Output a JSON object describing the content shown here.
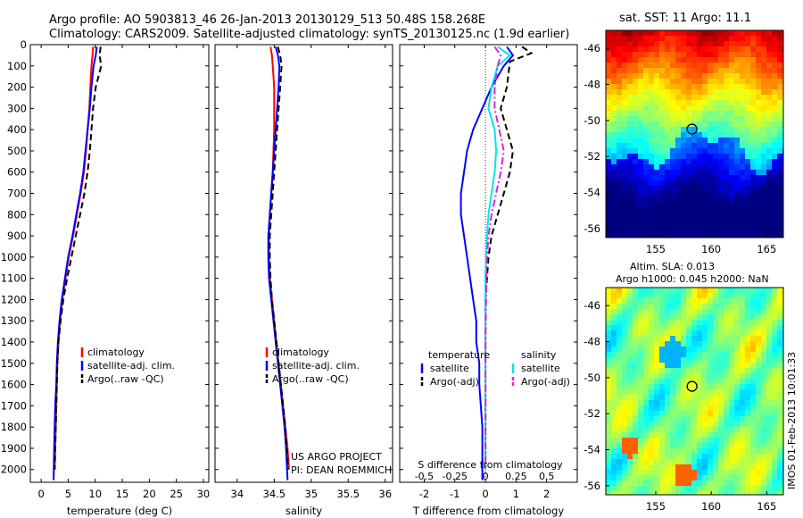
{
  "figure": {
    "title_line1": "Argo profile: AO 5903813_46 26-Jan-2013 20130129_513 50.48S 158.268E",
    "title_line2": "Climatology: CARS2009. Satellite-adjusted climatology: synTS_20130125.nc (1.9d earlier)",
    "footer_line1": "US ARGO PROJECT",
    "footer_line2": "PI: DEAN ROEMMICH",
    "timestamp": "IMOS 01-Feb-2013 10:01:33",
    "map1_title": "sat. SST: 11 Argo: 11.1",
    "map2_title_line1": "Altim. SLA: 0.013",
    "map2_title_line2": "Argo h1000: 0.045 h2000: NaN"
  },
  "colors": {
    "climatology": "#ff0000",
    "satellite": "#0000ff",
    "argo": "#000000",
    "salinity_satellite": "#00e5ee",
    "salinity_argo": "#e020e0"
  },
  "chart_data": [
    {
      "type": "line",
      "xlabel": "temperature (deg C)",
      "ylabel": "",
      "xlim": [
        -2,
        31
      ],
      "ylim": [
        2060,
        0
      ],
      "xticks": [
        "0",
        "5",
        "10",
        "15",
        "20",
        "25",
        "30"
      ],
      "xtick_values": [
        0,
        5,
        10,
        15,
        20,
        25,
        30
      ],
      "yticks": [
        "0",
        "100",
        "200",
        "300",
        "400",
        "500",
        "600",
        "700",
        "800",
        "900",
        "1000",
        "1100",
        "1200",
        "1300",
        "1400",
        "1500",
        "1600",
        "1700",
        "1800",
        "1900",
        "2000"
      ],
      "ytick_values": [
        0,
        100,
        200,
        300,
        400,
        500,
        600,
        700,
        800,
        900,
        1000,
        1100,
        1200,
        1300,
        1400,
        1500,
        1600,
        1700,
        1800,
        1900,
        2000
      ],
      "legend": [
        "climatology",
        "satellite-adj. clim.",
        "Argo(..raw -QC)"
      ],
      "legend_position": "lower-right",
      "series": [
        {
          "name": "climatology",
          "color": "#ff0000",
          "dash": "solid",
          "x": [
            9.6,
            9.5,
            9.3,
            9.1,
            8.9,
            8.6,
            8.3,
            7.9,
            7.3,
            6.6,
            5.9,
            5.1,
            4.5,
            3.9,
            3.5,
            3.2,
            3.0,
            2.9,
            2.8,
            2.7,
            2.6,
            2.5
          ],
          "y": [
            10,
            50,
            100,
            200,
            300,
            400,
            500,
            600,
            700,
            800,
            900,
            1000,
            1100,
            1200,
            1300,
            1400,
            1500,
            1600,
            1700,
            1800,
            1900,
            2000
          ]
        },
        {
          "name": "satellite-adj. clim.",
          "color": "#0000ff",
          "dash": "solid",
          "x": [
            10.3,
            10.1,
            9.7,
            9.3,
            9.0,
            8.6,
            8.2,
            7.8,
            7.2,
            6.5,
            5.8,
            5.0,
            4.4,
            3.8,
            3.4,
            3.1,
            2.9,
            2.8,
            2.6,
            2.5,
            2.4,
            2.3
          ],
          "y": [
            10,
            50,
            100,
            200,
            300,
            400,
            500,
            600,
            700,
            800,
            900,
            1000,
            1100,
            1200,
            1300,
            1400,
            1500,
            1600,
            1700,
            1800,
            1900,
            2050
          ]
        },
        {
          "name": "Argo(..raw -QC)",
          "color": "#000000",
          "dash": "dash",
          "x": [
            11.0,
            10.8,
            11.1,
            10.1,
            9.6,
            9.3,
            9.0,
            8.6,
            8.0,
            7.2,
            6.4,
            5.6,
            4.8,
            4.1,
            3.6,
            3.2,
            3.0,
            2.9,
            2.8,
            2.7,
            2.6,
            2.5
          ],
          "y": [
            10,
            50,
            100,
            200,
            300,
            400,
            500,
            600,
            700,
            800,
            900,
            1000,
            1100,
            1200,
            1300,
            1400,
            1500,
            1600,
            1700,
            1800,
            1900,
            2000
          ]
        }
      ]
    },
    {
      "type": "line",
      "xlabel": "salinity",
      "xlim": [
        33.7,
        36.1
      ],
      "ylim": [
        2060,
        0
      ],
      "xticks": [
        "34",
        "34.5",
        "35",
        "35.5",
        "36"
      ],
      "xtick_values": [
        34,
        34.5,
        35,
        35.5,
        36
      ],
      "legend": [
        "climatology",
        "satellite-adj. clim.",
        "Argo(..raw -QC)"
      ],
      "legend_position": "lower-right",
      "series": [
        {
          "name": "climatology",
          "color": "#ff0000",
          "dash": "solid",
          "x": [
            34.45,
            34.47,
            34.48,
            34.5,
            34.5,
            34.5,
            34.49,
            34.48,
            34.46,
            34.44,
            34.43,
            34.43,
            34.44,
            34.47,
            34.5,
            34.53,
            34.56,
            34.59,
            34.62,
            34.65,
            34.68,
            34.7
          ],
          "y": [
            10,
            50,
            100,
            200,
            300,
            400,
            500,
            600,
            700,
            800,
            900,
            1000,
            1100,
            1200,
            1300,
            1400,
            1500,
            1600,
            1700,
            1800,
            1900,
            2000
          ]
        },
        {
          "name": "satellite-adj. clim.",
          "color": "#0000ff",
          "dash": "solid",
          "x": [
            34.52,
            34.55,
            34.57,
            34.56,
            34.54,
            34.52,
            34.5,
            34.48,
            34.46,
            34.44,
            34.42,
            34.42,
            34.43,
            34.46,
            34.49,
            34.52,
            34.55,
            34.58,
            34.61,
            34.64,
            34.66,
            34.68
          ],
          "y": [
            10,
            50,
            100,
            200,
            300,
            400,
            500,
            600,
            700,
            800,
            900,
            1000,
            1100,
            1200,
            1300,
            1400,
            1500,
            1600,
            1700,
            1800,
            1900,
            2050
          ]
        },
        {
          "name": "Argo(..raw -QC)",
          "color": "#000000",
          "dash": "dash",
          "x": [
            34.55,
            34.58,
            34.6,
            34.58,
            34.56,
            34.54,
            34.52,
            34.5,
            34.48,
            34.46,
            34.44,
            34.44,
            34.45,
            34.47,
            34.5,
            34.53,
            34.56,
            34.59,
            34.62,
            34.65,
            34.67,
            34.69
          ],
          "y": [
            10,
            50,
            100,
            200,
            300,
            400,
            500,
            600,
            700,
            800,
            900,
            1000,
            1100,
            1200,
            1300,
            1400,
            1500,
            1600,
            1700,
            1800,
            1900,
            2000
          ]
        }
      ]
    },
    {
      "type": "line",
      "xlabel": "T difference from climatology",
      "xlabel_top": "S difference from climatology",
      "xlim": [
        -2.8,
        3.0
      ],
      "ylim": [
        2060,
        0
      ],
      "xticks": [
        "-2",
        "-1",
        "0",
        "1",
        "2"
      ],
      "xtick_values": [
        -2,
        -1,
        0,
        1,
        2
      ],
      "sticks": [
        "-0.5",
        "-0.25",
        "0",
        "0.25",
        "0.5"
      ],
      "stick_values": [
        -2,
        -1,
        0,
        1,
        2
      ],
      "legend_headers": [
        "temperature",
        "salinity"
      ],
      "legend": [
        "satellite",
        "Argo(-adj)",
        "satellite",
        "Argo(-adj)"
      ],
      "legend_position": "lower-center",
      "series": [
        {
          "name": "satellite",
          "group": "temperature",
          "color": "#0000ff",
          "dash": "solid",
          "x": [
            0.7,
            0.9,
            0.6,
            0.2,
            -0.1,
            -0.4,
            -0.6,
            -0.7,
            -0.8,
            -0.8,
            -0.7,
            -0.6,
            -0.5,
            -0.4,
            -0.3,
            -0.3,
            -0.2,
            -0.2,
            -0.15,
            -0.1,
            -0.1,
            -0.1
          ],
          "y": [
            10,
            50,
            100,
            200,
            300,
            400,
            500,
            600,
            700,
            800,
            900,
            1000,
            1100,
            1200,
            1300,
            1400,
            1500,
            1600,
            1700,
            1800,
            1900,
            2050
          ]
        },
        {
          "name": "Argo(-adj)",
          "group": "temperature",
          "color": "#000000",
          "dash": "dash",
          "x": [
            1.2,
            1.5,
            0.8,
            0.7,
            0.5,
            0.7,
            0.9,
            0.8,
            0.6,
            0.4,
            0.2,
            0.1,
            0.05,
            0.0,
            0.0,
            0.0,
            0.0,
            0.0,
            0.0,
            0.0,
            0.0,
            0.0
          ],
          "y": [
            10,
            40,
            80,
            200,
            300,
            400,
            500,
            600,
            700,
            800,
            900,
            1000,
            1100,
            1200,
            1300,
            1400,
            1500,
            1600,
            1700,
            1800,
            1900,
            2000
          ]
        },
        {
          "name": "satellite",
          "group": "salinity",
          "color": "#00e5ee",
          "dash": "solid",
          "x": [
            0.4,
            0.8,
            0.4,
            0.2,
            0.1,
            0.3,
            0.35,
            0.3,
            0.2,
            0.1,
            0.05,
            0.02,
            0.0,
            0.0,
            0.0,
            0.0,
            0.0,
            0.0,
            0.0,
            0.0,
            0.0,
            0.0
          ],
          "y": [
            10,
            50,
            100,
            200,
            300,
            400,
            500,
            600,
            700,
            800,
            900,
            1000,
            1100,
            1200,
            1300,
            1400,
            1500,
            1600,
            1700,
            1800,
            1900,
            2000
          ]
        },
        {
          "name": "Argo(-adj)",
          "group": "salinity",
          "color": "#e020e0",
          "dash": "dashdot",
          "x": [
            0.3,
            0.5,
            0.4,
            0.3,
            0.3,
            0.45,
            0.6,
            0.5,
            0.35,
            0.2,
            0.1,
            0.05,
            0.03,
            0.02,
            0.01,
            0.0,
            0.0,
            0.0,
            0.0,
            0.0,
            0.0,
            0.0
          ],
          "y": [
            10,
            50,
            100,
            200,
            300,
            400,
            500,
            600,
            700,
            800,
            900,
            1000,
            1100,
            1200,
            1300,
            1400,
            1500,
            1600,
            1700,
            1800,
            1900,
            2000
          ]
        }
      ]
    },
    {
      "type": "heatmap",
      "title": "sat. SST: 11 Argo: 11.1",
      "xlim": [
        150.5,
        166.5
      ],
      "ylim": [
        -56.5,
        -45.0
      ],
      "xticks": [
        "155",
        "160",
        "165"
      ],
      "xtick_values": [
        155,
        160,
        165
      ],
      "yticks": [
        "-46",
        "-48",
        "-50",
        "-52",
        "-54",
        "-56"
      ],
      "ytick_values": [
        -46,
        -48,
        -50,
        -52,
        -54,
        -56
      ],
      "float_marker": {
        "lon": 158.268,
        "lat": -50.48
      },
      "colormap": "jet"
    },
    {
      "type": "heatmap",
      "title": "Altim. SLA: 0.013",
      "subtitle": "Argo h1000: 0.045 h2000: NaN",
      "xlim": [
        150.5,
        166.5
      ],
      "ylim": [
        -56.5,
        -45.0
      ],
      "xticks": [
        "155",
        "160",
        "165"
      ],
      "xtick_values": [
        155,
        160,
        165
      ],
      "yticks": [
        "-46",
        "-48",
        "-50",
        "-52",
        "-54",
        "-56"
      ],
      "ytick_values": [
        -46,
        -48,
        -50,
        -52,
        -54,
        -56
      ],
      "float_marker": {
        "lon": 158.268,
        "lat": -50.48
      },
      "colormap": "jet"
    }
  ]
}
